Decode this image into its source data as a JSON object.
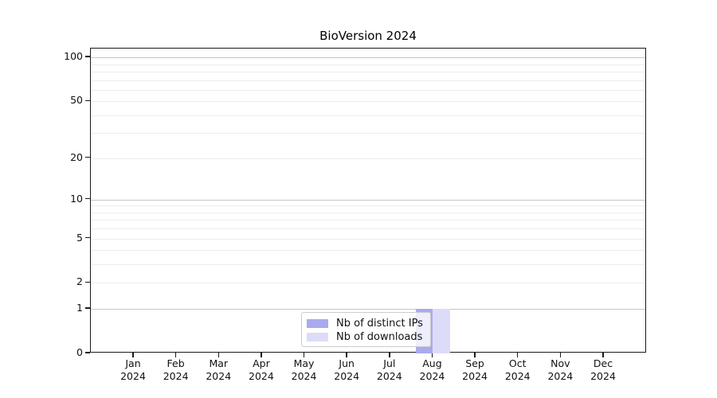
{
  "chart_data": {
    "type": "bar",
    "title": "BioVersion 2024",
    "categories": [
      "Jan 2024",
      "Feb 2024",
      "Mar 2024",
      "Apr 2024",
      "May 2024",
      "Jun 2024",
      "Jul 2024",
      "Aug 2024",
      "Sep 2024",
      "Oct 2024",
      "Nov 2024",
      "Dec 2024"
    ],
    "series": [
      {
        "name": "Nb of distinct IPs",
        "color": "#aaaaee",
        "values": [
          0,
          0,
          0,
          0,
          0,
          0,
          0,
          1,
          0,
          0,
          0,
          0
        ]
      },
      {
        "name": "Nb of downloads",
        "color": "#dcdcf8",
        "values": [
          0,
          0,
          0,
          0,
          0,
          0,
          0,
          1,
          0,
          0,
          0,
          0
        ]
      }
    ],
    "xlabel": "",
    "ylabel": "",
    "yscale": "log10(value+1)",
    "ylim": [
      0,
      115
    ],
    "y_tick_values": [
      0,
      1,
      2,
      5,
      10,
      20,
      50,
      100
    ],
    "grid_major_values": [
      1,
      10,
      100
    ],
    "grid_minor_values": [
      2,
      3,
      4,
      5,
      6,
      7,
      8,
      9,
      20,
      30,
      40,
      50,
      60,
      70,
      80,
      90
    ],
    "bar_width_fraction": 0.4,
    "legend": {
      "position": "lower center",
      "frame_alpha": 0.8
    },
    "colors": {
      "axis": "#1a1a1a",
      "grid_major": "#c6c6c6",
      "grid_minor": "#ededed",
      "tick_text": "#111111",
      "title_text": "#000000",
      "background": "#ffffff"
    }
  }
}
